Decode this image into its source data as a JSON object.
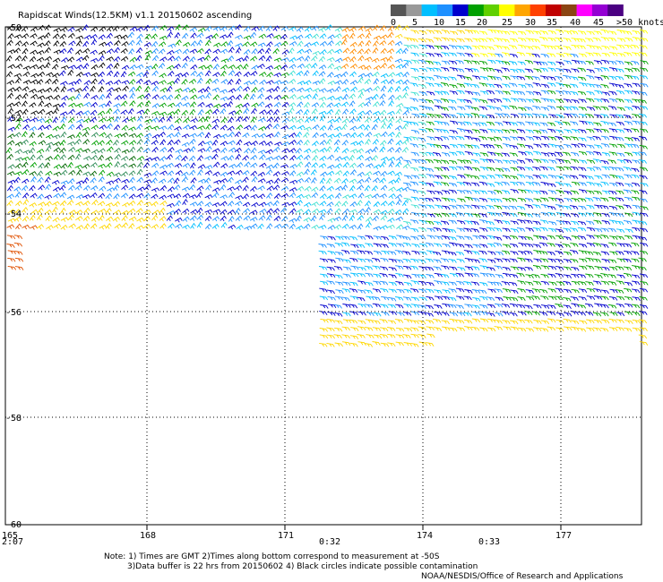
{
  "title": "Rapidscat Winds(12.5KM) v1.1 20150602 ascending",
  "legend": {
    "labels": [
      "0",
      "5",
      "10",
      "15",
      "20",
      "25",
      "30",
      "35",
      "40",
      "45",
      ">50 knots"
    ],
    "colors": [
      "#555555",
      "#999999",
      "#00bfff",
      "#1e90ff",
      "#0000cd",
      "#00a000",
      "#60d000",
      "#ffff00",
      "#ffa500",
      "#ff4000",
      "#c00000",
      "#8b4513",
      "#ff00ff",
      "#9400d3",
      "#4b0082"
    ]
  },
  "lat_labels": [
    "-50",
    "-52",
    "-54",
    "-56",
    "-58",
    "-60"
  ],
  "lon_labels": [
    "165",
    "168",
    "171",
    "174",
    "177"
  ],
  "time_labels": [
    "2:07",
    "0:32",
    "0:33"
  ],
  "notes": [
    "Note: 1) Times are GMT 2)Times along bottom correspond to measurement at -50S",
    "3)Data buffer is 22 hrs from 20150602 4) Black circles indicate possible contamination",
    "NOAA/NESDIS/Office of Research and Applications"
  ],
  "colors": {
    "grid": "#000000",
    "time_label": "#800080"
  }
}
